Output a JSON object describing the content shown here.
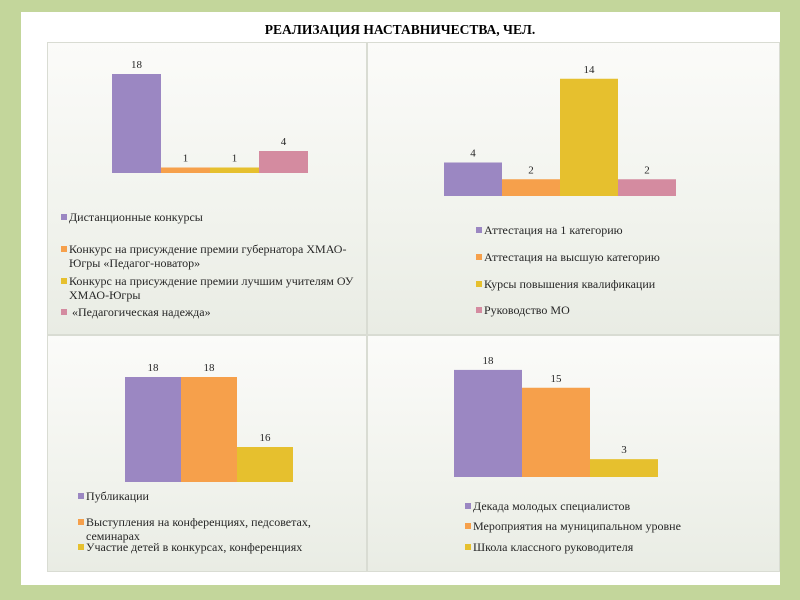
{
  "title": "РЕАЛИЗАЦИЯ НАСТАВНИЧЕСТВА, ЧЕЛ.",
  "colors": {
    "frame": "#c3d69b",
    "page": "#ffffff",
    "text": "#262626"
  },
  "chart_data": [
    {
      "type": "bar",
      "categories": [
        "Дистанционные конкурсы",
        "Конкурс на присуждение премии губернатора ХМАО-Югры «Педагог-новатор»",
        "Конкурс на присуждение премии лучшим учителям ОУ ХМАО-Югры",
        " «Педагогическая надежда»"
      ],
      "values": [
        18,
        1,
        1,
        4
      ],
      "colors": [
        "#9b87c2",
        "#f6a04b",
        "#e6c02e",
        "#d48ba0"
      ],
      "ylim": [
        0,
        20
      ],
      "grid": false,
      "legend": "bottom"
    },
    {
      "type": "bar",
      "categories": [
        "Аттестация на 1 категорию",
        "Аттестация на высшую категорию",
        "Курсы повышения квалификации",
        "Руководство МО"
      ],
      "values": [
        4,
        2,
        14,
        2
      ],
      "colors": [
        "#9b87c2",
        "#f6a04b",
        "#e6c02e",
        "#d48ba0"
      ],
      "ylim": [
        0,
        16
      ],
      "grid": false,
      "legend": "bottom"
    },
    {
      "type": "bar",
      "categories": [
        "Публикации",
        "Выступления на конференциях, педсоветах, семинарах",
        "Участие детей в конкурсах, конференциях"
      ],
      "values": [
        18,
        18,
        16
      ],
      "colors": [
        "#9b87c2",
        "#f6a04b",
        "#e6c02e"
      ],
      "ylim": [
        15,
        18.5
      ],
      "grid": false,
      "legend": "bottom"
    },
    {
      "type": "bar",
      "categories": [
        "Декада молодых специалистов",
        "Мероприятия на муниципальном уровне",
        "Школа классного руководителя"
      ],
      "values": [
        18,
        15,
        3
      ],
      "colors": [
        "#9b87c2",
        "#f6a04b",
        "#e6c02e"
      ],
      "ylim": [
        0,
        20
      ],
      "grid": false,
      "legend": "bottom"
    }
  ]
}
